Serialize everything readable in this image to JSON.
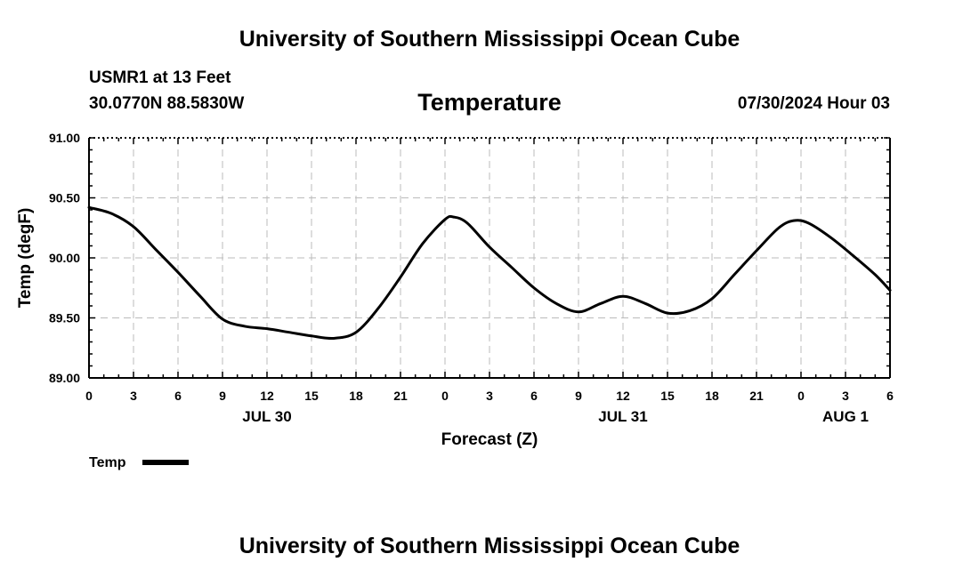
{
  "header": {
    "top_title": "University of Southern Mississippi Ocean Cube",
    "station": "USMR1 at 13 Feet",
    "coords": "30.0770N  88.5830W",
    "timestamp": "07/30/2024 Hour 03",
    "bottom_title": "University of Southern Mississippi Ocean Cube"
  },
  "colors": {
    "line": "#000000",
    "grid": "#bbbbbb",
    "axis": "#000000"
  },
  "chart_data": {
    "type": "line",
    "title": "Temperature",
    "xlabel": "Forecast (Z)",
    "ylabel": "Temp (degF)",
    "xlim": [
      0,
      54
    ],
    "ylim": [
      89.0,
      91.0
    ],
    "x_tick_values": [
      0,
      3,
      6,
      9,
      12,
      15,
      18,
      21,
      24,
      27,
      30,
      33,
      36,
      39,
      42,
      45,
      48,
      51,
      54
    ],
    "x_tick_labels": [
      "0",
      "3",
      "6",
      "9",
      "12",
      "15",
      "18",
      "21",
      "0",
      "3",
      "6",
      "9",
      "12",
      "15",
      "18",
      "21",
      "0",
      "3",
      "6"
    ],
    "y_tick_values": [
      89.0,
      89.5,
      90.0,
      90.5,
      91.0
    ],
    "y_tick_labels": [
      "89.00",
      "89.50",
      "90.00",
      "90.50",
      "91.00"
    ],
    "date_labels": [
      {
        "x": 12,
        "label": "JUL 30"
      },
      {
        "x": 36,
        "label": "JUL 31"
      },
      {
        "x": 51,
        "label": "AUG 1"
      }
    ],
    "grid": true,
    "legend_position": "bottom-left",
    "series": [
      {
        "name": "Temp",
        "x": [
          0,
          1.5,
          3,
          4.5,
          6,
          7.5,
          9,
          10.5,
          12,
          13.5,
          15,
          16.5,
          18,
          19.5,
          21,
          22.5,
          24,
          24.6,
          25.5,
          27,
          28.5,
          30,
          31.5,
          33,
          34.5,
          36,
          37.5,
          39,
          40.5,
          42,
          43.5,
          45,
          46.5,
          47.5,
          48.5,
          50,
          51.5,
          53,
          54
        ],
        "values": [
          90.42,
          90.37,
          90.26,
          90.07,
          89.88,
          89.68,
          89.49,
          89.43,
          89.41,
          89.38,
          89.35,
          89.33,
          89.38,
          89.58,
          89.84,
          90.12,
          90.32,
          90.34,
          90.29,
          90.09,
          89.92,
          89.75,
          89.62,
          89.55,
          89.62,
          89.68,
          89.62,
          89.54,
          89.56,
          89.66,
          89.86,
          90.06,
          90.25,
          90.31,
          90.29,
          90.17,
          90.02,
          89.86,
          89.73
        ]
      }
    ]
  }
}
